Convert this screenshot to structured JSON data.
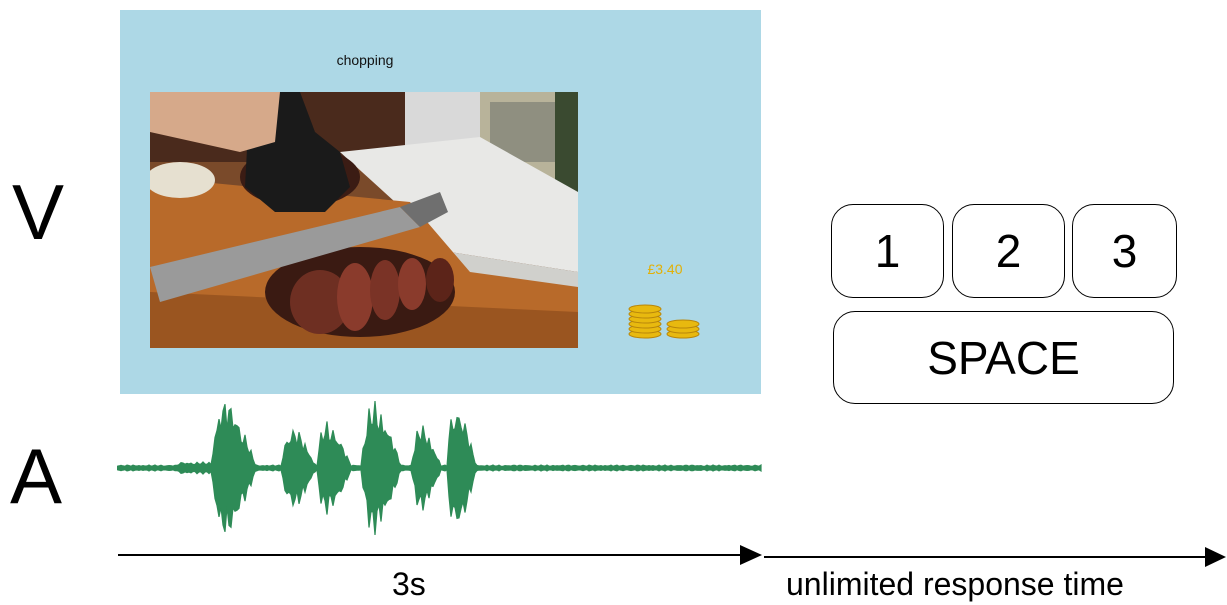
{
  "rows": {
    "visual_label": "V",
    "audio_label": "A"
  },
  "screen": {
    "caption": "chopping",
    "price": "£3.40",
    "background": "#add8e6",
    "price_color": "#e2b007",
    "photo_alt": "",
    "coin_icon": "coins-icon"
  },
  "waveform": {
    "color": "#2e8b57"
  },
  "keys": {
    "k1": "1",
    "k2": "2",
    "k3": "3",
    "space": "SPACE"
  },
  "timeline": {
    "first": "3s",
    "second": "unlimited response time"
  }
}
